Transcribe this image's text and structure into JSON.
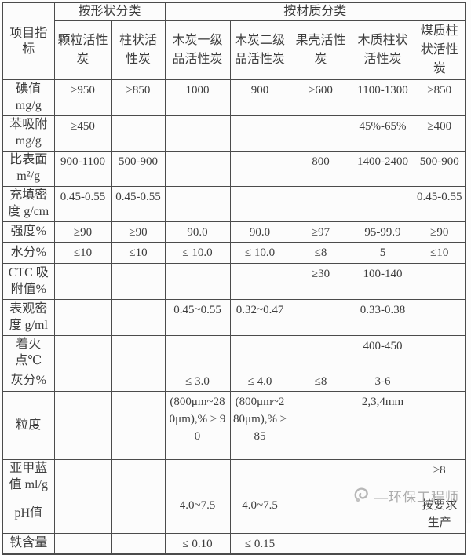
{
  "page": {
    "background": "#fcfcfc",
    "border_color": "#4b4b4b",
    "text_color": "#3d3d3d"
  },
  "table": {
    "corner_label": "项目指标",
    "groups": {
      "shape": "按形状分类",
      "material": "按材质分类"
    },
    "columns": [
      "颗粒活性炭",
      "柱状活性炭",
      "木炭一级品活性炭",
      "木炭二级品活性炭",
      "果壳活性炭",
      "木质柱状活性炭",
      "煤质柱状活性炭"
    ],
    "rows": [
      {
        "label": "碘值 mg/g",
        "values": [
          "≥950",
          "≥850",
          "1000",
          "900",
          "≥600",
          "1100-1300",
          "≥850"
        ]
      },
      {
        "label": "苯吸附 mg/g",
        "values": [
          "≥450",
          "",
          "",
          "",
          "",
          "45%-65%",
          "≥400"
        ]
      },
      {
        "label": "比表面 m²/g",
        "values": [
          "900-1100",
          "500-900",
          "",
          "",
          "800",
          "1400-2400",
          "500-900"
        ]
      },
      {
        "label": "充填密度 g/cm",
        "values": [
          "0.45-0.55",
          "0.45-0.55",
          "",
          "",
          "",
          "",
          "0.45-0.55"
        ]
      },
      {
        "label": "强度%",
        "values": [
          "≥90",
          "≥90",
          "90.0",
          "90.0",
          "≥97",
          "95-99.9",
          "≥90"
        ]
      },
      {
        "label": "水分%",
        "values": [
          "≤10",
          "≤10",
          "≤ 10.0",
          "≤ 10.0",
          "≤8",
          "5",
          "≤10"
        ]
      },
      {
        "label": "CTC 吸附值%",
        "values": [
          "",
          "",
          "",
          "",
          "≥30",
          "100-140",
          ""
        ]
      },
      {
        "label": "表观密度 g/ml",
        "values": [
          "",
          "",
          "0.45~0.55",
          "0.32~0.47",
          "",
          "0.33-0.38",
          ""
        ]
      },
      {
        "label": "着火 点℃",
        "values": [
          "",
          "",
          "",
          "",
          "",
          "400-450",
          ""
        ]
      },
      {
        "label": "灰分%",
        "values": [
          "",
          "",
          "≤ 3.0",
          "≤ 4.0",
          "≤8",
          "3-6",
          ""
        ]
      },
      {
        "label": "粒度",
        "values": [
          "",
          "",
          "(800μm~280μm),% ≥ 90",
          "(800μm~280μm),% ≥ 85",
          "",
          "2,3,4mm",
          ""
        ]
      },
      {
        "label": "亚甲蓝值 ml/g",
        "values": [
          "",
          "",
          "",
          "",
          "",
          "",
          "≥8"
        ]
      },
      {
        "label": "pH值",
        "values": [
          "",
          "",
          "4.0~7.5",
          "4.0~7.5",
          "",
          "",
          "按要求生产"
        ]
      },
      {
        "label": "铁含量",
        "values": [
          "",
          "",
          "≤ 0.10",
          "≤ 0.15",
          "",
          "",
          ""
        ]
      }
    ]
  },
  "watermark": {
    "text": "—环保工程师",
    "color": "#ababab"
  }
}
